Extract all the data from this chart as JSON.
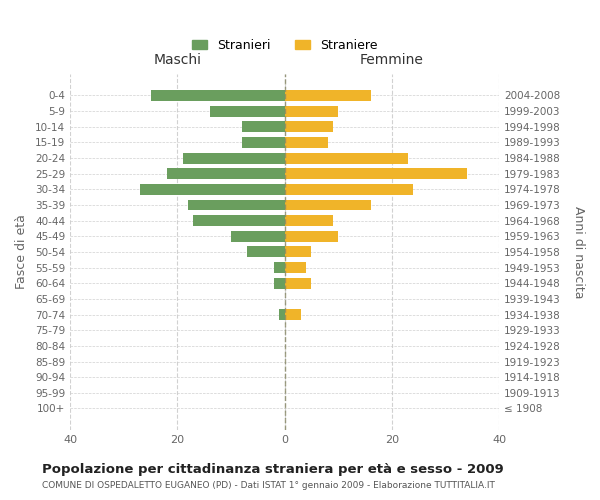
{
  "age_groups": [
    "100+",
    "95-99",
    "90-94",
    "85-89",
    "80-84",
    "75-79",
    "70-74",
    "65-69",
    "60-64",
    "55-59",
    "50-54",
    "45-49",
    "40-44",
    "35-39",
    "30-34",
    "25-29",
    "20-24",
    "15-19",
    "10-14",
    "5-9",
    "0-4"
  ],
  "birth_years": [
    "≤ 1908",
    "1909-1913",
    "1914-1918",
    "1919-1923",
    "1924-1928",
    "1929-1933",
    "1934-1938",
    "1939-1943",
    "1944-1948",
    "1949-1953",
    "1954-1958",
    "1959-1963",
    "1964-1968",
    "1969-1973",
    "1974-1978",
    "1979-1983",
    "1984-1988",
    "1989-1993",
    "1994-1998",
    "1999-2003",
    "2004-2008"
  ],
  "maschi": [
    0,
    0,
    0,
    0,
    0,
    0,
    1,
    0,
    2,
    2,
    7,
    10,
    17,
    18,
    27,
    22,
    19,
    8,
    8,
    14,
    25
  ],
  "femmine": [
    0,
    0,
    0,
    0,
    0,
    0,
    3,
    0,
    5,
    4,
    5,
    10,
    9,
    16,
    24,
    34,
    23,
    8,
    9,
    10,
    16
  ],
  "color_maschi": "#6a9e5e",
  "color_femmine": "#f0b429",
  "xlabel_left": "Maschi",
  "xlabel_right": "Femmine",
  "ylabel_left": "Fasce di età",
  "ylabel_right": "Anni di nascita",
  "legend_maschi": "Stranieri",
  "legend_femmine": "Straniere",
  "title": "Popolazione per cittadinanza straniera per età e sesso - 2009",
  "subtitle": "COMUNE DI OSPEDALETTO EUGANEO (PD) - Dati ISTAT 1° gennaio 2009 - Elaborazione TUTTITALIA.IT",
  "xlim": 40,
  "bg_color": "#ffffff",
  "grid_color": "#cccccc",
  "text_color": "#666666"
}
